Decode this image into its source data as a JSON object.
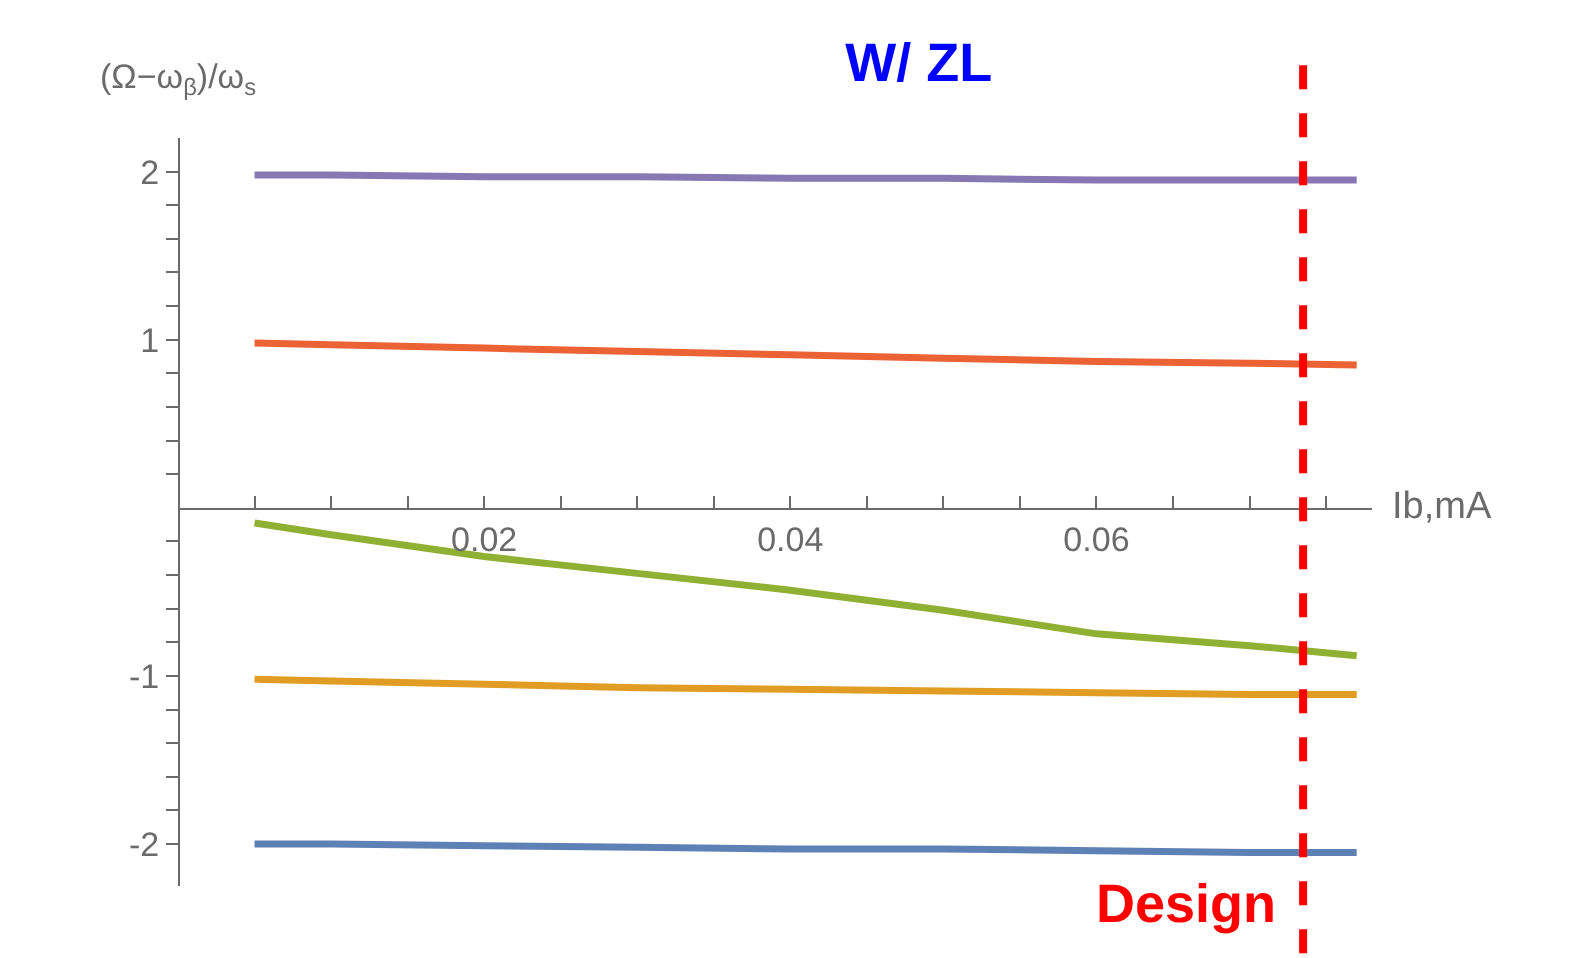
{
  "chart_data": {
    "type": "line",
    "title": "W/ ZL",
    "xlabel": "Ib,mA",
    "ylabel": "(Ω−ω$_{β}$)/ω$_{s}$",
    "x": [
      0.005,
      0.01,
      0.02,
      0.03,
      0.04,
      0.05,
      0.06,
      0.07,
      0.077
    ],
    "series": [
      {
        "color": "#5e81b5",
        "values": [
          -2.0,
          -2.0,
          -2.01,
          -2.02,
          -2.03,
          -2.03,
          -2.04,
          -2.05,
          -2.05
        ]
      },
      {
        "color": "#e19c24",
        "values": [
          -1.02,
          -1.03,
          -1.05,
          -1.07,
          -1.08,
          -1.09,
          -1.1,
          -1.11,
          -1.11
        ]
      },
      {
        "color": "#8fb032",
        "values": [
          -0.09,
          -0.16,
          -0.29,
          -0.39,
          -0.49,
          -0.61,
          -0.75,
          -0.82,
          -0.88
        ]
      },
      {
        "color": "#eb6235",
        "values": [
          0.98,
          0.97,
          0.95,
          0.93,
          0.91,
          0.89,
          0.87,
          0.86,
          0.85
        ]
      },
      {
        "color": "#8778b3",
        "values": [
          1.98,
          1.98,
          1.97,
          1.97,
          1.96,
          1.96,
          1.95,
          1.95,
          1.95
        ]
      }
    ],
    "xlim": [
      0,
      0.078
    ],
    "ylim": [
      -2.25,
      2.2
    ],
    "xticks": [
      {
        "value": 0.005,
        "label": null
      },
      {
        "value": 0.01,
        "label": null
      },
      {
        "value": 0.015,
        "label": null
      },
      0.02,
      {
        "value": 0.025,
        "label": null
      },
      {
        "value": 0.03,
        "label": null
      },
      {
        "value": 0.035,
        "label": null
      },
      0.04,
      {
        "value": 0.045,
        "label": null
      },
      {
        "value": 0.05,
        "label": null
      },
      {
        "value": 0.055,
        "label": null
      },
      0.06,
      {
        "value": 0.065,
        "label": null
      },
      {
        "value": 0.07,
        "label": null
      },
      {
        "value": 0.075,
        "label": null
      }
    ],
    "yticks": [
      -2,
      {
        "value": -1.8,
        "label": null
      },
      {
        "value": -1.6,
        "label": null
      },
      {
        "value": -1.4,
        "label": null
      },
      {
        "value": -1.2,
        "label": null
      },
      -1,
      {
        "value": -0.8,
        "label": null
      },
      {
        "value": -0.6,
        "label": null
      },
      {
        "value": -0.4,
        "label": null
      },
      {
        "value": -0.2,
        "label": null
      },
      {
        "value": 0.2,
        "label": null
      },
      {
        "value": 0.4,
        "label": null
      },
      {
        "value": 0.6,
        "label": null
      },
      {
        "value": 0.8,
        "label": null
      },
      1,
      {
        "value": 1.2,
        "label": null
      },
      {
        "value": 1.4,
        "label": null
      },
      {
        "value": 1.6,
        "label": null
      },
      {
        "value": 1.8,
        "label": null
      },
      2
    ],
    "ref_lines": [
      {
        "axis": "x",
        "value": 0.0735,
        "label": "Design",
        "color": "#ff0000",
        "line_style": "dashed"
      }
    ],
    "marker": "none",
    "line_style": "solid"
  }
}
